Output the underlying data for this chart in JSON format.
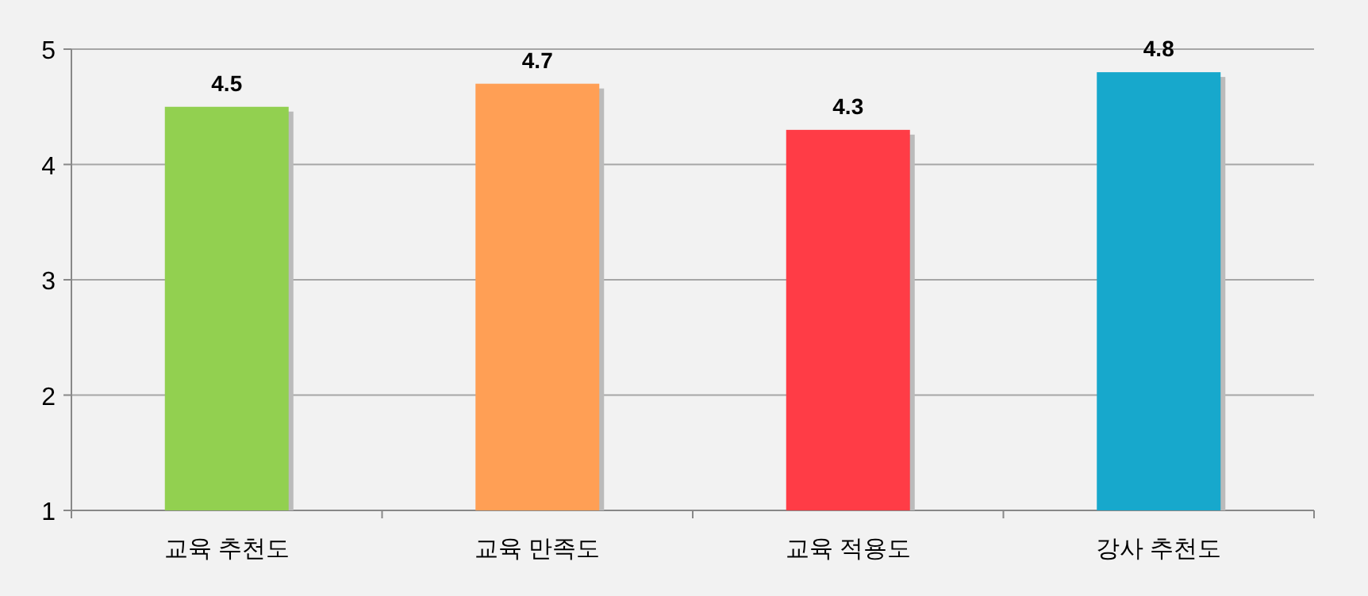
{
  "chart_data": {
    "type": "bar",
    "categories": [
      "교육 추천도",
      "교육 만족도",
      "교육 적용도",
      "강사 추천도"
    ],
    "values": [
      4.5,
      4.7,
      4.3,
      4.8
    ],
    "colors": [
      "#92d050",
      "#ff9f55",
      "#ff3c46",
      "#17a8cc"
    ],
    "ylim": [
      1,
      5
    ],
    "yticks": [
      1,
      2,
      3,
      4,
      5
    ],
    "grid": "y",
    "data_labels": true
  }
}
